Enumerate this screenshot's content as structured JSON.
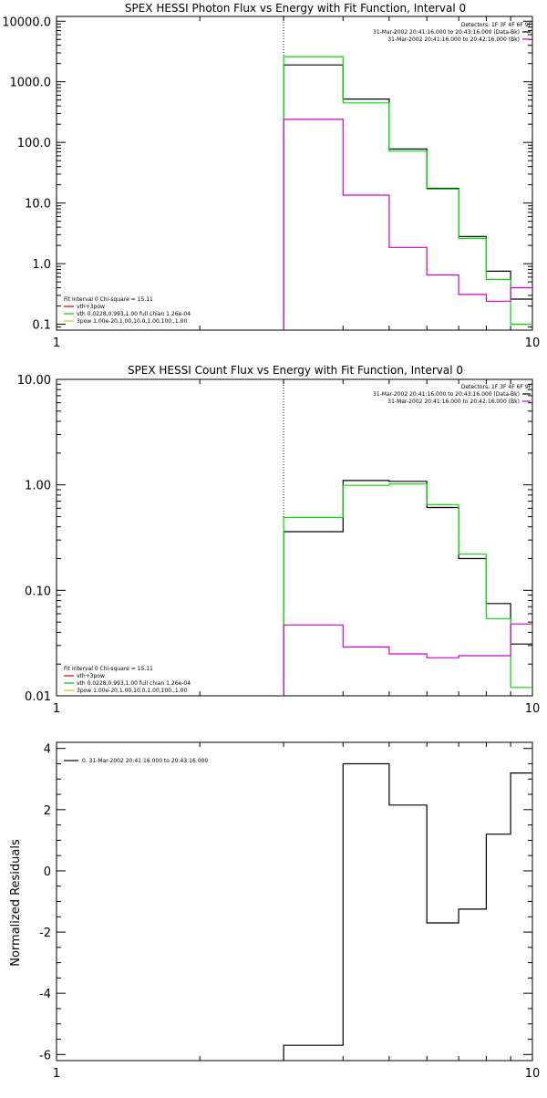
{
  "chart_data": [
    {
      "type": "line",
      "title": "SPEX HESSI Photon Flux vs Energy with Fit Function, Interval 0",
      "xlabel": "",
      "ylabel": "",
      "xscale": "log",
      "yscale": "log",
      "xlim": [
        1,
        10
      ],
      "ylim": [
        0.08,
        12000
      ],
      "x_ticks": [
        {
          "v": 1,
          "label": "1"
        },
        {
          "v": 10,
          "label": "10"
        }
      ],
      "y_ticks": [
        {
          "v": 0.1,
          "label": "0.1"
        },
        {
          "v": 1,
          "label": "1.0"
        },
        {
          "v": 10,
          "label": "10.0"
        },
        {
          "v": 100,
          "label": "100.0"
        },
        {
          "v": 1000,
          "label": "1000.0"
        },
        {
          "v": 10000,
          "label": "10000.0"
        }
      ],
      "vline_x": 3,
      "legend_top": [
        "Detectors: 1F 3F 4F 6F 9F",
        "31-Mar-2002 20:41:16.000 to 20:43:16.000 (Data-Bk)",
        "31-Mar-2002 20:41:16.000 to 20:42:16.000 (Bk)"
      ],
      "legend_top_colors": [
        "#000000",
        "#cc00cc"
      ],
      "legend_bottom": [
        "Fit Interval 0   Chi-square = 15.11",
        "vth+3pow",
        "vth 0.0228,0.993,1.00  full chian 1.26e-04",
        "3pow 1.00e-20,1.00,10.0,1.00,100.,1.00"
      ],
      "legend_bottom_colors": [
        "#cc0000",
        "#00cc00",
        "#cccc00"
      ],
      "series": [
        {
          "name": "Data-Bk",
          "color": "#000000",
          "edges": [
            3,
            4,
            5,
            6,
            7,
            8,
            9,
            10
          ],
          "values": [
            1900,
            520,
            78,
            17.5,
            2.8,
            0.75,
            0.26
          ]
        },
        {
          "name": "vth+3pow",
          "color": "#00dd00",
          "edges": [
            3,
            4,
            5,
            6,
            7,
            8,
            9,
            10
          ],
          "values": [
            2600,
            450,
            72,
            17,
            2.6,
            0.55,
            0.1
          ]
        },
        {
          "name": "Bk",
          "color": "#cc00cc",
          "edges": [
            3,
            4,
            5,
            6,
            7,
            8,
            9,
            10
          ],
          "values": [
            240,
            13.5,
            1.85,
            0.65,
            0.31,
            0.24,
            0.4
          ]
        }
      ]
    },
    {
      "type": "line",
      "title": "SPEX HESSI Count Flux vs Energy with Fit Function, Interval 0",
      "xlabel": "",
      "ylabel": "",
      "xscale": "log",
      "yscale": "log",
      "xlim": [
        1,
        10
      ],
      "ylim": [
        0.01,
        10
      ],
      "x_ticks": [
        {
          "v": 1,
          "label": "1"
        },
        {
          "v": 10,
          "label": "10"
        }
      ],
      "y_ticks": [
        {
          "v": 0.01,
          "label": "0.01"
        },
        {
          "v": 0.1,
          "label": "0.10"
        },
        {
          "v": 1,
          "label": "1.00"
        },
        {
          "v": 10,
          "label": "10.00"
        }
      ],
      "vline_x": 3,
      "legend_top": [
        "Detectors: 1F 3F 4F 6F 9F",
        "31-Mar-2002 20:41:16.000 to 20:43:16.000 (Data-Bk)",
        "31-Mar-2002 20:41:16.000 to 20:42:16.000 (Bk)"
      ],
      "legend_top_colors": [
        "#000000",
        "#cc00cc"
      ],
      "legend_bottom": [
        "Fit Interval 0   Chi-square = 15.11",
        "vth+3pow",
        "vth 0.0228,0.993,1.00  full chian 1.26e-04",
        "3pow 1.00e-20,1.00,10.0,1.00,100.,1.00"
      ],
      "legend_bottom_colors": [
        "#cc0000",
        "#00cc00",
        "#cccc00"
      ],
      "series": [
        {
          "name": "Data-Bk",
          "color": "#000000",
          "edges": [
            3,
            4,
            5,
            6,
            7,
            8,
            9,
            10
          ],
          "values": [
            0.36,
            1.1,
            1.08,
            0.61,
            0.2,
            0.075,
            0.031
          ]
        },
        {
          "name": "vth+3pow",
          "color": "#00dd00",
          "edges": [
            3,
            4,
            5,
            6,
            7,
            8,
            9,
            10
          ],
          "values": [
            0.49,
            0.99,
            1.02,
            0.65,
            0.22,
            0.054,
            0.012
          ]
        },
        {
          "name": "Bk",
          "color": "#cc00cc",
          "edges": [
            3,
            4,
            5,
            6,
            7,
            8,
            9,
            10
          ],
          "values": [
            0.047,
            0.029,
            0.025,
            0.023,
            0.024,
            0.024,
            0.048
          ]
        }
      ]
    },
    {
      "type": "line",
      "title": "",
      "xlabel": "",
      "ylabel": "Normalized  Residuals",
      "xscale": "log",
      "yscale": "linear",
      "xlim": [
        1,
        10
      ],
      "ylim": [
        -6.2,
        4.2
      ],
      "x_ticks": [
        {
          "v": 1,
          "label": "1"
        },
        {
          "v": 10,
          "label": "10"
        }
      ],
      "y_ticks": [
        {
          "v": -6,
          "label": "-6"
        },
        {
          "v": -4,
          "label": "-4"
        },
        {
          "v": -2,
          "label": "-2"
        },
        {
          "v": 0,
          "label": "0"
        },
        {
          "v": 2,
          "label": "2"
        },
        {
          "v": 4,
          "label": "4"
        }
      ],
      "legend_top": [
        "0. 31-Mar-2002 20:41:16.000 to 20:43:16.000"
      ],
      "legend_top_colors": [
        "#000000"
      ],
      "series": [
        {
          "name": "0. 31-Mar-2002 20:41:16.000 to 20:43:16.000",
          "color": "#000000",
          "edges": [
            3,
            4,
            5,
            6,
            7,
            8,
            9,
            10
          ],
          "values": [
            -5.7,
            3.5,
            2.15,
            -1.7,
            -1.25,
            1.2,
            3.2
          ]
        }
      ]
    }
  ]
}
